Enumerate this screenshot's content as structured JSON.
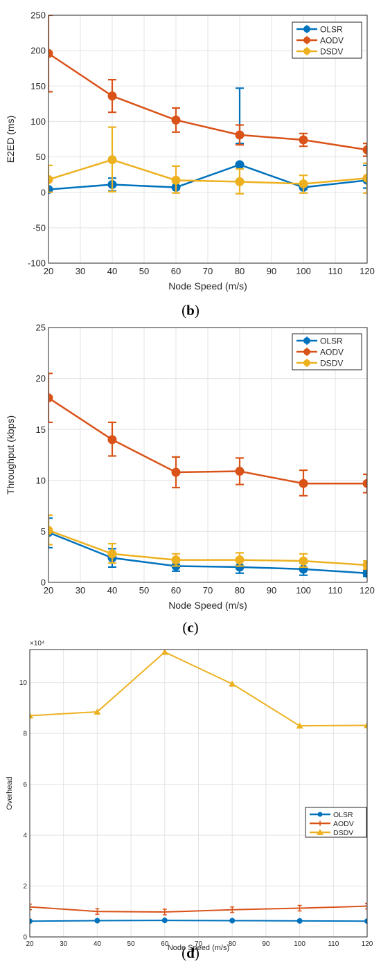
{
  "chart_data": [
    {
      "type": "line",
      "caption_letter": "b",
      "xlabel": "Node Speed (m/s)",
      "ylabel": "E2ED (ms)",
      "xlim": [
        20,
        120
      ],
      "ylim": [
        -100,
        250
      ],
      "xticks": [
        20,
        30,
        40,
        50,
        60,
        70,
        80,
        90,
        100,
        110,
        120
      ],
      "yticks": [
        -100,
        -50,
        0,
        50,
        100,
        150,
        200,
        250
      ],
      "grid": true,
      "legend_position": "top-right",
      "x": [
        20,
        40,
        60,
        80,
        100,
        120
      ],
      "series": [
        {
          "name": "OLSR",
          "color": "#0072BD",
          "marker": "circle",
          "values": [
            4,
            11,
            7,
            39,
            7,
            17
          ],
          "err_low": [
            1,
            2,
            5,
            69,
            5,
            6
          ],
          "err_high": [
            1,
            20,
            5,
            147,
            13,
            38
          ]
        },
        {
          "name": "AODV",
          "color": "#D95319",
          "marker": "circle",
          "values": [
            196,
            136,
            102,
            81,
            74,
            60
          ],
          "err_low": [
            142,
            113,
            85,
            67,
            65,
            51
          ],
          "err_high": [
            250,
            159,
            119,
            95,
            83,
            69
          ]
        },
        {
          "name": "DSDV",
          "color": "#EDB120",
          "marker": "circle",
          "values": [
            18,
            46,
            17,
            15,
            12,
            20
          ],
          "err_low": [
            0,
            1,
            -1,
            -2,
            -1,
            -1
          ],
          "err_high": [
            38,
            92,
            37,
            33,
            24,
            41
          ]
        }
      ]
    },
    {
      "type": "line",
      "caption_letter": "c",
      "xlabel": "Node Speed (m/s)",
      "ylabel": "Throughput (kbps)",
      "xlim": [
        20,
        120
      ],
      "ylim": [
        0,
        25
      ],
      "xticks": [
        20,
        30,
        40,
        50,
        60,
        70,
        80,
        90,
        100,
        110,
        120
      ],
      "yticks": [
        0,
        5,
        10,
        15,
        20,
        25
      ],
      "grid": true,
      "legend_position": "top-right",
      "x": [
        20,
        40,
        60,
        80,
        100,
        120
      ],
      "series": [
        {
          "name": "OLSR",
          "color": "#0072BD",
          "marker": "circle",
          "values": [
            4.9,
            2.4,
            1.6,
            1.5,
            1.3,
            0.9
          ],
          "err_low": [
            3.4,
            1.5,
            1.1,
            0.9,
            0.7,
            0.6
          ],
          "err_high": [
            6.3,
            3.3,
            2.1,
            2.1,
            1.9,
            1.2
          ]
        },
        {
          "name": "AODV",
          "color": "#D95319",
          "marker": "circle",
          "values": [
            18.1,
            14.0,
            10.8,
            10.9,
            9.7,
            9.7
          ],
          "err_low": [
            15.7,
            12.4,
            9.3,
            9.6,
            8.5,
            8.8
          ],
          "err_high": [
            20.5,
            15.7,
            12.3,
            12.2,
            11.0,
            10.6
          ]
        },
        {
          "name": "DSDV",
          "color": "#EDB120",
          "marker": "circle",
          "values": [
            5.1,
            2.8,
            2.2,
            2.2,
            2.1,
            1.7
          ],
          "err_low": [
            3.7,
            1.9,
            1.6,
            1.6,
            1.5,
            1.3
          ],
          "err_high": [
            6.6,
            3.8,
            2.8,
            2.9,
            2.8,
            2.1
          ]
        }
      ]
    },
    {
      "type": "line",
      "caption_letter": "d",
      "xlabel": "Node Speed (m/s)",
      "ylabel": "Overhead",
      "exponent_label": "×10⁴",
      "xlim": [
        20,
        120
      ],
      "ylim": [
        0,
        11.3
      ],
      "y_scale_factor": 10000,
      "xticks": [
        20,
        30,
        40,
        50,
        60,
        70,
        80,
        90,
        100,
        110,
        120
      ],
      "yticks": [
        0,
        2,
        4,
        6,
        8,
        10
      ],
      "grid": true,
      "legend_position": "right",
      "x": [
        20,
        40,
        60,
        80,
        100,
        120
      ],
      "series": [
        {
          "name": "OLSR",
          "color": "#0072BD",
          "marker": "circle",
          "values": [
            0.62,
            0.64,
            0.65,
            0.64,
            0.63,
            0.62
          ]
        },
        {
          "name": "AODV",
          "color": "#D95319",
          "marker": "errbar",
          "values": [
            1.18,
            1.0,
            0.98,
            1.07,
            1.13,
            1.21
          ]
        },
        {
          "name": "DSDV",
          "color": "#EDB120",
          "marker": "triangle",
          "values": [
            8.7,
            8.85,
            11.2,
            9.95,
            8.3,
            8.32
          ]
        }
      ]
    }
  ]
}
